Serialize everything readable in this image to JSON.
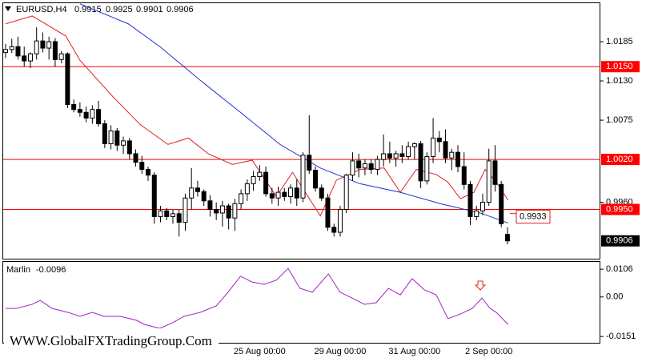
{
  "chart_data": [
    {
      "type": "candlestick",
      "title": "EURUSD,H4",
      "categories": [
        null,
        null,
        null,
        null,
        null,
        null,
        null,
        null,
        null,
        null,
        null,
        null,
        null,
        null,
        null,
        null,
        null,
        null,
        null,
        null,
        null,
        null,
        null,
        null,
        null,
        null,
        null,
        null,
        null,
        null,
        null,
        null,
        null,
        null,
        null,
        null,
        null,
        null,
        null,
        null,
        null,
        "25 Aug 00:00",
        null,
        null,
        null,
        null,
        null,
        null,
        null,
        null,
        null,
        null,
        null,
        null,
        "29 Aug 00:00",
        null,
        null,
        null,
        null,
        null,
        null,
        null,
        null,
        null,
        null,
        null,
        "31 Aug 00:00",
        null,
        null,
        null,
        null,
        null,
        null,
        null,
        null,
        null,
        null,
        null,
        "2 Sep 00:00",
        null,
        null,
        null
      ],
      "open": [
        1.017,
        1.0174,
        1.0178,
        1.0165,
        1.0158,
        1.0168,
        1.0186,
        1.0176,
        1.0185,
        1.016,
        1.0168,
        1.0097,
        1.009,
        1.0086,
        1.0078,
        1.009,
        1.007,
        1.0042,
        1.006,
        1.004,
        1.0046,
        1.0028,
        1.0016,
        1.0006,
        0.9998,
        0.994,
        0.9948,
        0.994,
        0.9944,
        0.9932,
        0.9966,
        0.998,
        0.9975,
        0.9962,
        0.995,
        0.9945,
        0.9955,
        0.9938,
        0.9958,
        0.9972,
        0.9986,
        0.9996,
        1.0002,
        0.9972,
        0.9966,
        0.9974,
        0.9968,
        0.998,
        0.9966,
        1.0026,
        1.0005,
        0.998,
        0.9966,
        0.9925,
        0.9918,
        0.995,
        0.9998,
        1.0018,
        1.0008,
        1.0014,
        1.0006,
        1.002,
        1.0028,
        1.0022,
        1.0028,
        1.0024,
        1.0038,
        1.0042,
        0.999,
        1.0024,
        1.005,
        1.0045,
        1.0022,
        1.003,
        1.001,
        0.9985,
        0.994,
        0.9948,
        0.996,
        1.0018,
        0.9985,
        0.9915
      ],
      "high": [
        1.0182,
        1.0189,
        1.0192,
        1.0178,
        1.017,
        1.0205,
        1.0198,
        1.0192,
        1.019,
        1.0172,
        1.017,
        1.0104,
        1.01,
        1.0094,
        1.0096,
        1.0102,
        1.0075,
        1.0068,
        1.0064,
        1.0052,
        1.005,
        1.0034,
        1.0025,
        1.001,
        1.0002,
        0.9955,
        0.9952,
        0.995,
        0.995,
        0.9972,
        1.0008,
        0.999,
        0.9978,
        0.997,
        0.996,
        0.9962,
        0.9958,
        0.9965,
        0.9978,
        0.9992,
        1.0004,
        1.0012,
        1.001,
        0.998,
        0.9982,
        0.998,
        0.9985,
        0.9992,
        1.003,
        1.0082,
        1.001,
        0.9985,
        0.9972,
        0.993,
        0.9955,
        1.0,
        1.003,
        1.0028,
        1.002,
        1.002,
        1.0025,
        1.0055,
        1.0045,
        1.0032,
        1.004,
        1.0045,
        1.0044,
        1.0046,
        1.003,
        1.0078,
        1.006,
        1.0062,
        1.0035,
        1.004,
        1.003,
        0.999,
        0.9955,
        0.9972,
        1.0035,
        1.004,
        0.999,
        0.9925
      ],
      "low": [
        1.0162,
        1.0169,
        1.016,
        1.015,
        1.0148,
        1.016,
        1.017,
        1.016,
        1.015,
        1.0155,
        1.0092,
        1.0086,
        1.008,
        1.0072,
        1.007,
        1.0066,
        1.0036,
        1.0034,
        1.0032,
        1.0028,
        1.002,
        1.001,
        1.0,
        0.999,
        0.993,
        0.9932,
        0.9935,
        0.993,
        0.9912,
        0.992,
        0.995,
        0.9968,
        0.9955,
        0.994,
        0.9935,
        0.9926,
        0.9922,
        0.992,
        0.995,
        0.9962,
        0.9976,
        0.999,
        0.9968,
        0.9958,
        0.9955,
        0.9962,
        0.9958,
        0.9955,
        0.996,
        1.0,
        0.9975,
        0.9962,
        0.992,
        0.9912,
        0.9912,
        0.9945,
        0.999,
        0.9995,
        0.9998,
        1.0,
        0.9998,
        1.001,
        1.0015,
        1.001,
        1.0015,
        1.002,
        1.002,
        0.998,
        0.9985,
        1.0015,
        1.003,
        1.0015,
        1.0005,
        1.0002,
        0.9978,
        0.9928,
        0.9935,
        0.9942,
        0.9955,
        0.9975,
        0.9925,
        0.9901
      ],
      "close": [
        1.0174,
        1.0178,
        1.0165,
        1.0158,
        1.0168,
        1.0186,
        1.0176,
        1.0185,
        1.016,
        1.0168,
        1.0097,
        1.009,
        1.0086,
        1.0078,
        1.009,
        1.007,
        1.0042,
        1.006,
        1.004,
        1.0046,
        1.0028,
        1.0016,
        1.0006,
        0.9998,
        0.994,
        0.9948,
        0.994,
        0.9944,
        0.9932,
        0.9966,
        0.998,
        0.9975,
        0.9962,
        0.995,
        0.9945,
        0.9955,
        0.9938,
        0.9958,
        0.9972,
        0.9986,
        0.9996,
        1.0002,
        0.9972,
        0.9966,
        0.9974,
        0.9968,
        0.998,
        0.9966,
        1.0026,
        1.0005,
        0.998,
        0.9966,
        0.9925,
        0.9918,
        0.995,
        0.9998,
        1.0018,
        1.0008,
        1.0014,
        1.0006,
        1.002,
        1.0028,
        1.0022,
        1.0028,
        1.0024,
        1.0038,
        1.0042,
        0.999,
        1.0024,
        1.005,
        1.0045,
        1.0022,
        1.003,
        1.001,
        0.9985,
        0.994,
        0.9948,
        0.996,
        1.0018,
        0.9985,
        0.993,
        0.9906
      ],
      "color": "#000000",
      "ylim": [
        0.9881,
        1.024
      ],
      "yticks": [
        1.0185,
        {
          "value": 1.013,
          "label": "1.0130"
        },
        1.0075,
        {
          "value": 0.996,
          "label": "0.9960"
        }
      ],
      "levels": [
        {
          "value": 1.015,
          "label": "1.0150"
        },
        {
          "value": 1.002,
          "label": "1.0020"
        },
        {
          "value": 0.995,
          "label": "0.9950"
        }
      ],
      "level_color": "#ff0000",
      "lines": [
        {
          "color": "#e02020",
          "x": [
            0,
            4.3,
            9.7,
            12,
            17.2,
            21.7,
            26.2,
            29.5,
            32.7,
            36.6,
            39.8,
            43.7,
            46.3,
            50.8,
            53.4,
            57.2,
            61.1,
            63.7,
            66.3,
            69.5,
            71.4,
            73.4,
            75.6,
            77.4,
            79.2,
            81.1
          ],
          "values": [
            1.021,
            1.0221,
            1.0193,
            1.0159,
            1.0109,
            1.0069,
            1.0041,
            1.005,
            1.0028,
            1.0013,
            1.0019,
            0.9968,
            1.0002,
            0.9941,
            0.9991,
            1.0006,
            1.0008,
            0.9974,
            1.0006,
            0.9999,
            0.9988,
            0.9965,
            0.9974,
            1.0006,
            0.9988,
            0.9963
          ]
        },
        {
          "color": "#2030d0",
          "x": [
            12,
            19.8,
            24.9,
            31.4,
            37.9,
            44.3,
            50.8,
            57.2,
            63.7,
            70.2,
            76.6,
            81.1
          ],
          "values": [
            1.0238,
            1.021,
            1.0178,
            1.0131,
            1.0086,
            1.0041,
            1.0008,
            0.9986,
            0.9974,
            0.9958,
            0.9945,
            0.9931
          ]
        }
      ],
      "annotation": 0.9933
    },
    {
      "type": "line",
      "title": "Marlin",
      "value": -0.0096,
      "series": [
        {
          "color": "#a020c0",
          "x": [
            0,
            1.7,
            4.3,
            5.6,
            7.5,
            10.1,
            12.0,
            14.0,
            15.9,
            18.5,
            21.1,
            22.4,
            24.9,
            26.9,
            28.8,
            31.4,
            34.0,
            35.9,
            37.9,
            39.8,
            41.7,
            43.7,
            45.6,
            47.5,
            49.5,
            52.1,
            54.0,
            55.9,
            57.9,
            59.8,
            61.8,
            63.7,
            65.6,
            67.6,
            69.5,
            71.4,
            73.4,
            75.3,
            76.9,
            78.2,
            79.2,
            81.1
          ],
          "values": [
            -0.0044,
            -0.0044,
            -0.0028,
            -0.0013,
            -0.0044,
            -0.0059,
            -0.0074,
            -0.0059,
            -0.0074,
            -0.0074,
            -0.0089,
            -0.0105,
            -0.012,
            -0.0099,
            -0.0074,
            -0.0059,
            -0.0034,
            0.0018,
            0.0079,
            0.0057,
            0.0048,
            0.0064,
            0.0109,
            0.0033,
            0.0018,
            0.0088,
            0.0018,
            -0.0004,
            -0.0028,
            -0.0022,
            0.0033,
            0.0008,
            0.007,
            0.0027,
            0.0008,
            -0.0083,
            -0.0065,
            -0.0044,
            -0.0004,
            -0.0044,
            -0.0059,
            -0.0105
          ]
        }
      ],
      "ylim": [
        -0.0175,
        0.0137
      ],
      "yticks": [
        0.0106,
        {
          "value": 0,
          "label": "0.00"
        },
        -0.0151
      ]
    }
  ],
  "watermark": "WWW.GlobalFXTradingGroup.Com"
}
